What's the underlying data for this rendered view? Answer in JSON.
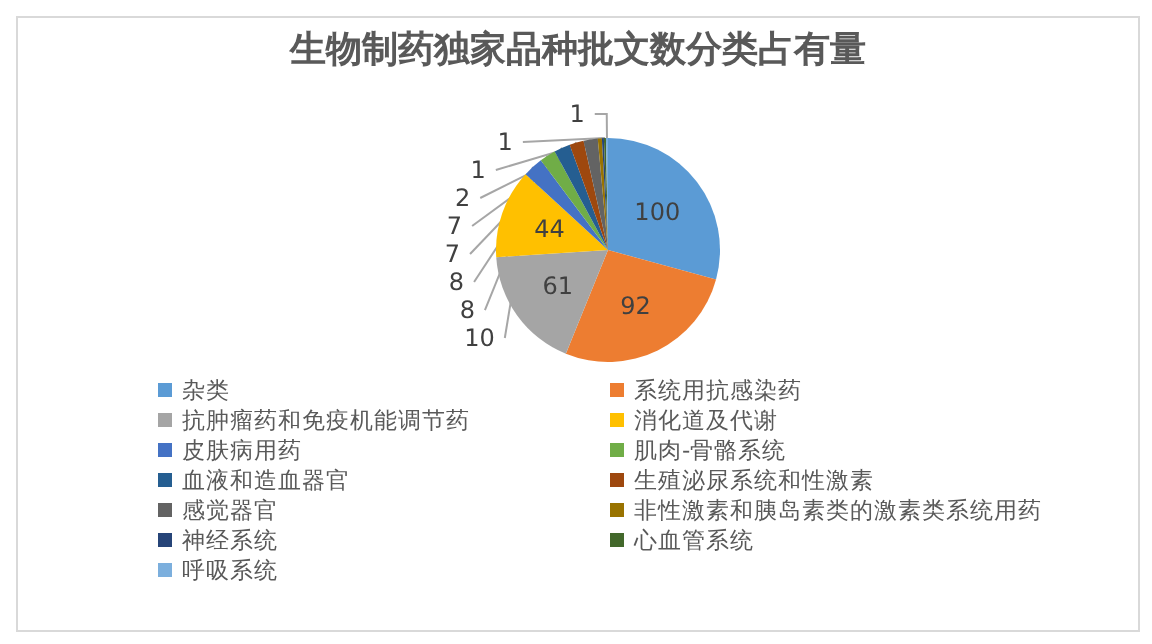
{
  "chart_data": {
    "type": "pie",
    "title": "生物制药独家品种批文数分类占有量",
    "categories": [
      "杂类",
      "系统用抗感染药",
      "抗肿瘤药和免疫机能调节药",
      "消化道及代谢",
      "皮肤病用药",
      "肌肉-骨骼系统",
      "血液和造血器官",
      "生殖泌尿系统和性激素",
      "感觉器官",
      "非性激素和胰岛素类的激素类系统用药",
      "神经系统",
      "心血管系统",
      "呼吸系统"
    ],
    "values": [
      100,
      92,
      61,
      44,
      10,
      8,
      8,
      7,
      7,
      2,
      1,
      1,
      1
    ],
    "colors": [
      "#5b9bd5",
      "#ed7d31",
      "#a5a5a5",
      "#ffc000",
      "#4472c4",
      "#70ad47",
      "#255e91",
      "#9e480e",
      "#636363",
      "#997300",
      "#264478",
      "#43682b",
      "#7cafdd"
    ],
    "data_labels": true,
    "legend": "bottom"
  }
}
